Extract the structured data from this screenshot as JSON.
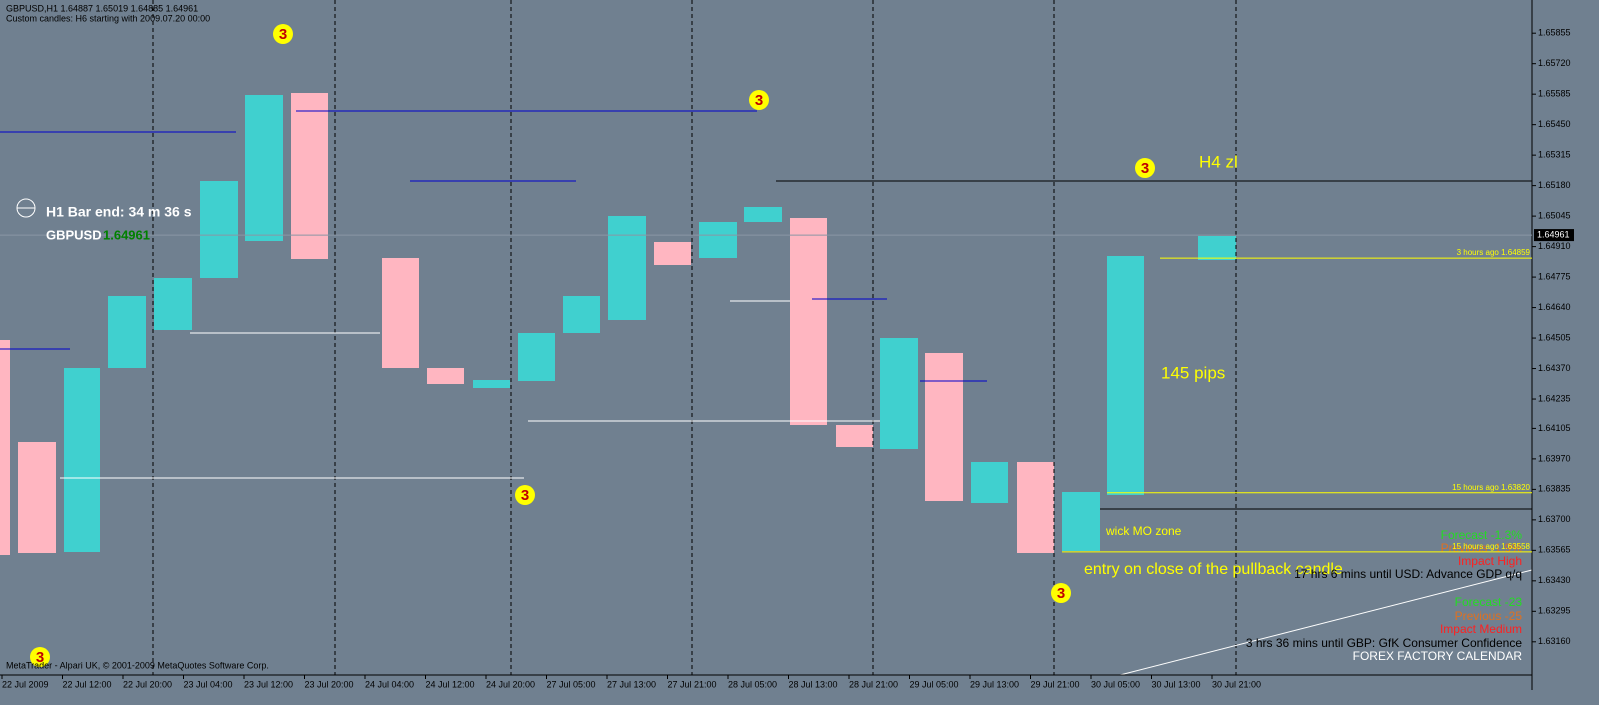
{
  "header": {
    "symbol_line": "GBPUSD,H1  1.64887 1.65019 1.64885 1.64961",
    "custom_line": "Custom candles: H6 starting with 2009.07.20 00:00"
  },
  "price_axis": {
    "ylim": [
      1.63013,
      1.66002
    ],
    "yticks": [
      1.65855,
      {
        "value": 1.6572,
        "label": "1.65720"
      },
      1.65585,
      {
        "value": 1.6545,
        "label": "1.65450"
      },
      1.65315,
      {
        "value": 1.6518,
        "label": "1.65180"
      },
      1.65045,
      {
        "value": 1.6491,
        "label": "1.64910"
      },
      1.64775,
      {
        "value": 1.6464,
        "label": "1.64640"
      },
      1.64505,
      {
        "value": 1.6437,
        "label": "1.64370"
      },
      1.64235,
      1.64105,
      {
        "value": 1.6397,
        "label": "1.63970"
      },
      1.63835,
      {
        "value": 1.637,
        "label": "1.63700"
      },
      1.63565,
      {
        "value": 1.6343,
        "label": "1.63430"
      },
      1.63295,
      {
        "value": 1.6316,
        "label": "1.63160"
      }
    ],
    "current": 1.64961
  },
  "time_axis": [
    "22 Jul 2009",
    "22 Jul 12:00",
    "22 Jul 20:00",
    "23 Jul 04:00",
    "23 Jul 12:00",
    "23 Jul 20:00",
    "24 Jul 04:00",
    "24 Jul 12:00",
    "24 Jul 20:00",
    "27 Jul 05:00",
    "27 Jul 13:00",
    "27 Jul 21:00",
    "28 Jul 05:00",
    "28 Jul 13:00",
    "28 Jul 21:00",
    "29 Jul 05:00",
    "29 Jul 13:00",
    "29 Jul 21:00",
    "30 Jul 05:00",
    "30 Jul 13:00",
    "30 Jul 21:00"
  ],
  "levels": [
    {
      "value": 1.64859,
      "label": "3 hours ago 1.64859"
    },
    {
      "value": 1.6382,
      "label": "15 hours ago 1.63820"
    },
    {
      "value": 1.63558,
      "label": "15 hours ago 1.63558"
    }
  ],
  "info": {
    "bar_end": "H1 Bar end: 34 m 36 s",
    "symbol": "GBPUSD",
    "price": "1.64961"
  },
  "wave_label": "3",
  "annotations": {
    "h4": "H4 zl",
    "pips": "145 pips",
    "wick": "wick MO zone",
    "entry": "entry on close of the pullback candle"
  },
  "calendar": {
    "forecast1": "Forecast -1.3%",
    "previous1": "Previous -1.9%",
    "impact1": "Impact High",
    "event1": "17 hrs 6 mins until USD: Advance GDP q/q",
    "forecast2": "Forecast -23",
    "previous2": "Previous -25",
    "impact2": "Impact Medium",
    "event2": "3 hrs 36 mins until GBP: GfK Consumer Confidence",
    "title": "FOREX FACTORY CALENDAR"
  },
  "footer": "MetaTrader - Alpari UK, © 2001-2009 MetaQuotes Software Corp."
}
